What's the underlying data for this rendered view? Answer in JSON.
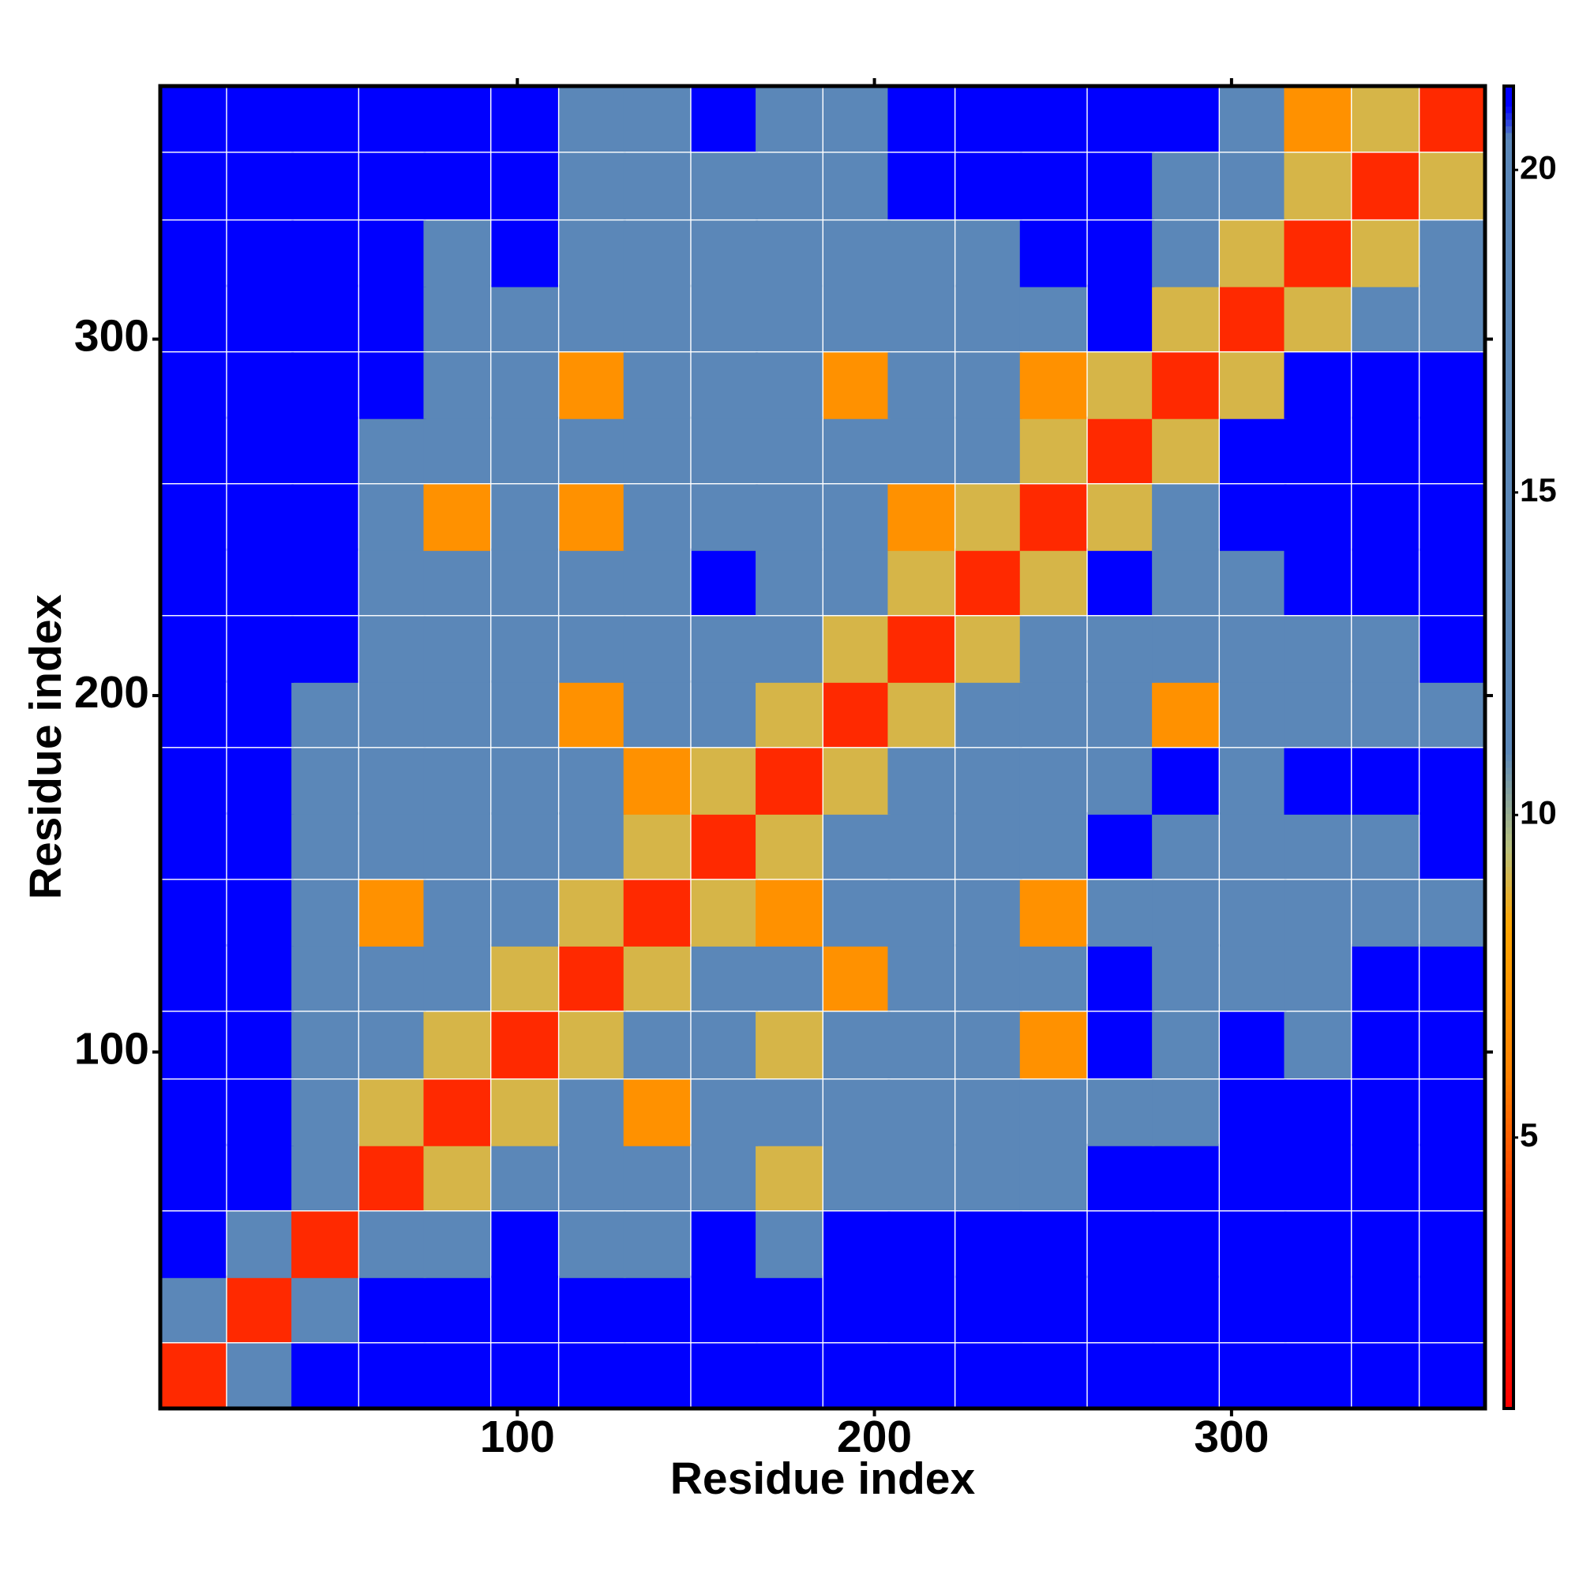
{
  "chart_data": {
    "type": "heatmap",
    "xlabel": "Residue index",
    "ylabel": "Residue index",
    "x": [
      9,
      28,
      46,
      65,
      83,
      102,
      121,
      139,
      158,
      176,
      195,
      213,
      232,
      250,
      269,
      287,
      306,
      324,
      343,
      362
    ],
    "y": [
      9,
      28,
      46,
      65,
      83,
      102,
      121,
      139,
      158,
      176,
      195,
      213,
      232,
      250,
      269,
      287,
      306,
      324,
      343,
      362
    ],
    "z": [
      [
        3,
        16,
        22,
        22,
        22,
        22,
        22,
        22,
        22,
        22,
        22,
        22,
        22,
        22,
        22,
        22,
        22,
        22,
        22,
        22
      ],
      [
        16,
        3,
        16,
        22,
        22,
        22,
        22,
        22,
        22,
        22,
        22,
        22,
        22,
        22,
        22,
        22,
        22,
        22,
        22,
        22
      ],
      [
        22,
        16,
        3,
        16,
        16,
        22,
        16,
        16,
        22,
        16,
        22,
        22,
        22,
        22,
        22,
        22,
        22,
        22,
        22,
        22
      ],
      [
        22,
        22,
        16,
        3,
        9,
        16,
        16,
        16,
        16,
        9,
        16,
        16,
        16,
        16,
        22,
        22,
        22,
        22,
        22,
        22
      ],
      [
        22,
        22,
        16,
        9,
        3,
        9,
        16,
        7,
        16,
        16,
        16,
        16,
        16,
        16,
        16,
        16,
        22,
        22,
        22,
        22
      ],
      [
        22,
        22,
        16,
        16,
        9,
        3,
        9,
        16,
        16,
        9,
        16,
        16,
        16,
        7,
        22,
        16,
        22,
        16,
        22,
        22
      ],
      [
        22,
        22,
        16,
        16,
        16,
        9,
        3,
        9,
        16,
        16,
        7,
        16,
        16,
        16,
        22,
        16,
        16,
        16,
        22,
        22
      ],
      [
        22,
        22,
        16,
        7,
        16,
        16,
        9,
        3,
        9,
        7,
        16,
        16,
        16,
        7,
        16,
        16,
        16,
        16,
        16,
        16
      ],
      [
        22,
        22,
        16,
        16,
        16,
        16,
        16,
        9,
        3,
        9,
        16,
        16,
        16,
        16,
        22,
        16,
        16,
        16,
        16,
        22
      ],
      [
        22,
        22,
        16,
        16,
        16,
        16,
        16,
        7,
        9,
        3,
        9,
        16,
        16,
        16,
        16,
        22,
        16,
        22,
        22,
        22
      ],
      [
        22,
        22,
        16,
        16,
        16,
        16,
        7,
        16,
        16,
        9,
        3,
        9,
        16,
        16,
        16,
        7,
        16,
        16,
        16,
        16
      ],
      [
        22,
        22,
        22,
        16,
        16,
        16,
        16,
        16,
        16,
        16,
        9,
        3,
        9,
        16,
        16,
        16,
        16,
        16,
        16,
        22
      ],
      [
        22,
        22,
        22,
        16,
        16,
        16,
        16,
        16,
        22,
        16,
        16,
        9,
        3,
        9,
        22,
        16,
        16,
        22,
        22,
        22
      ],
      [
        22,
        22,
        22,
        16,
        7,
        16,
        7,
        16,
        16,
        16,
        16,
        7,
        9,
        3,
        9,
        16,
        22,
        22,
        22,
        22
      ],
      [
        22,
        22,
        22,
        16,
        16,
        16,
        16,
        16,
        16,
        16,
        16,
        16,
        16,
        9,
        3,
        9,
        22,
        22,
        22,
        22
      ],
      [
        22,
        22,
        22,
        22,
        16,
        16,
        7,
        16,
        16,
        16,
        7,
        16,
        16,
        7,
        9,
        3,
        9,
        22,
        22,
        22
      ],
      [
        22,
        22,
        22,
        22,
        16,
        16,
        16,
        16,
        16,
        16,
        16,
        16,
        16,
        16,
        22,
        9,
        3,
        9,
        16,
        16
      ],
      [
        22,
        22,
        22,
        22,
        16,
        22,
        16,
        16,
        16,
        16,
        16,
        16,
        16,
        22,
        22,
        16,
        9,
        3,
        9,
        16
      ],
      [
        22,
        22,
        22,
        22,
        22,
        22,
        16,
        16,
        16,
        16,
        16,
        22,
        22,
        22,
        22,
        16,
        16,
        9,
        3,
        9
      ],
      [
        22,
        22,
        22,
        22,
        22,
        22,
        16,
        16,
        22,
        16,
        16,
        22,
        22,
        22,
        22,
        22,
        16,
        7,
        9,
        3
      ]
    ],
    "xlim": [
      0,
      371
    ],
    "ylim": [
      0,
      371
    ],
    "xticks": [
      100,
      200,
      300
    ],
    "yticks": [
      100,
      200,
      300
    ],
    "zlim": [
      0.8,
      21.3
    ],
    "zticks": [
      5,
      10,
      15,
      20
    ],
    "colorscale": [
      [
        0.8,
        "#ff0000"
      ],
      [
        4,
        "#ff3c00"
      ],
      [
        6,
        "#ff8200"
      ],
      [
        8.3,
        "#ffa500"
      ],
      [
        9.5,
        "#b8c07c"
      ],
      [
        11,
        "#5b87b8"
      ],
      [
        20.5,
        "#5b87b8"
      ],
      [
        21,
        "#0000ff"
      ]
    ]
  }
}
